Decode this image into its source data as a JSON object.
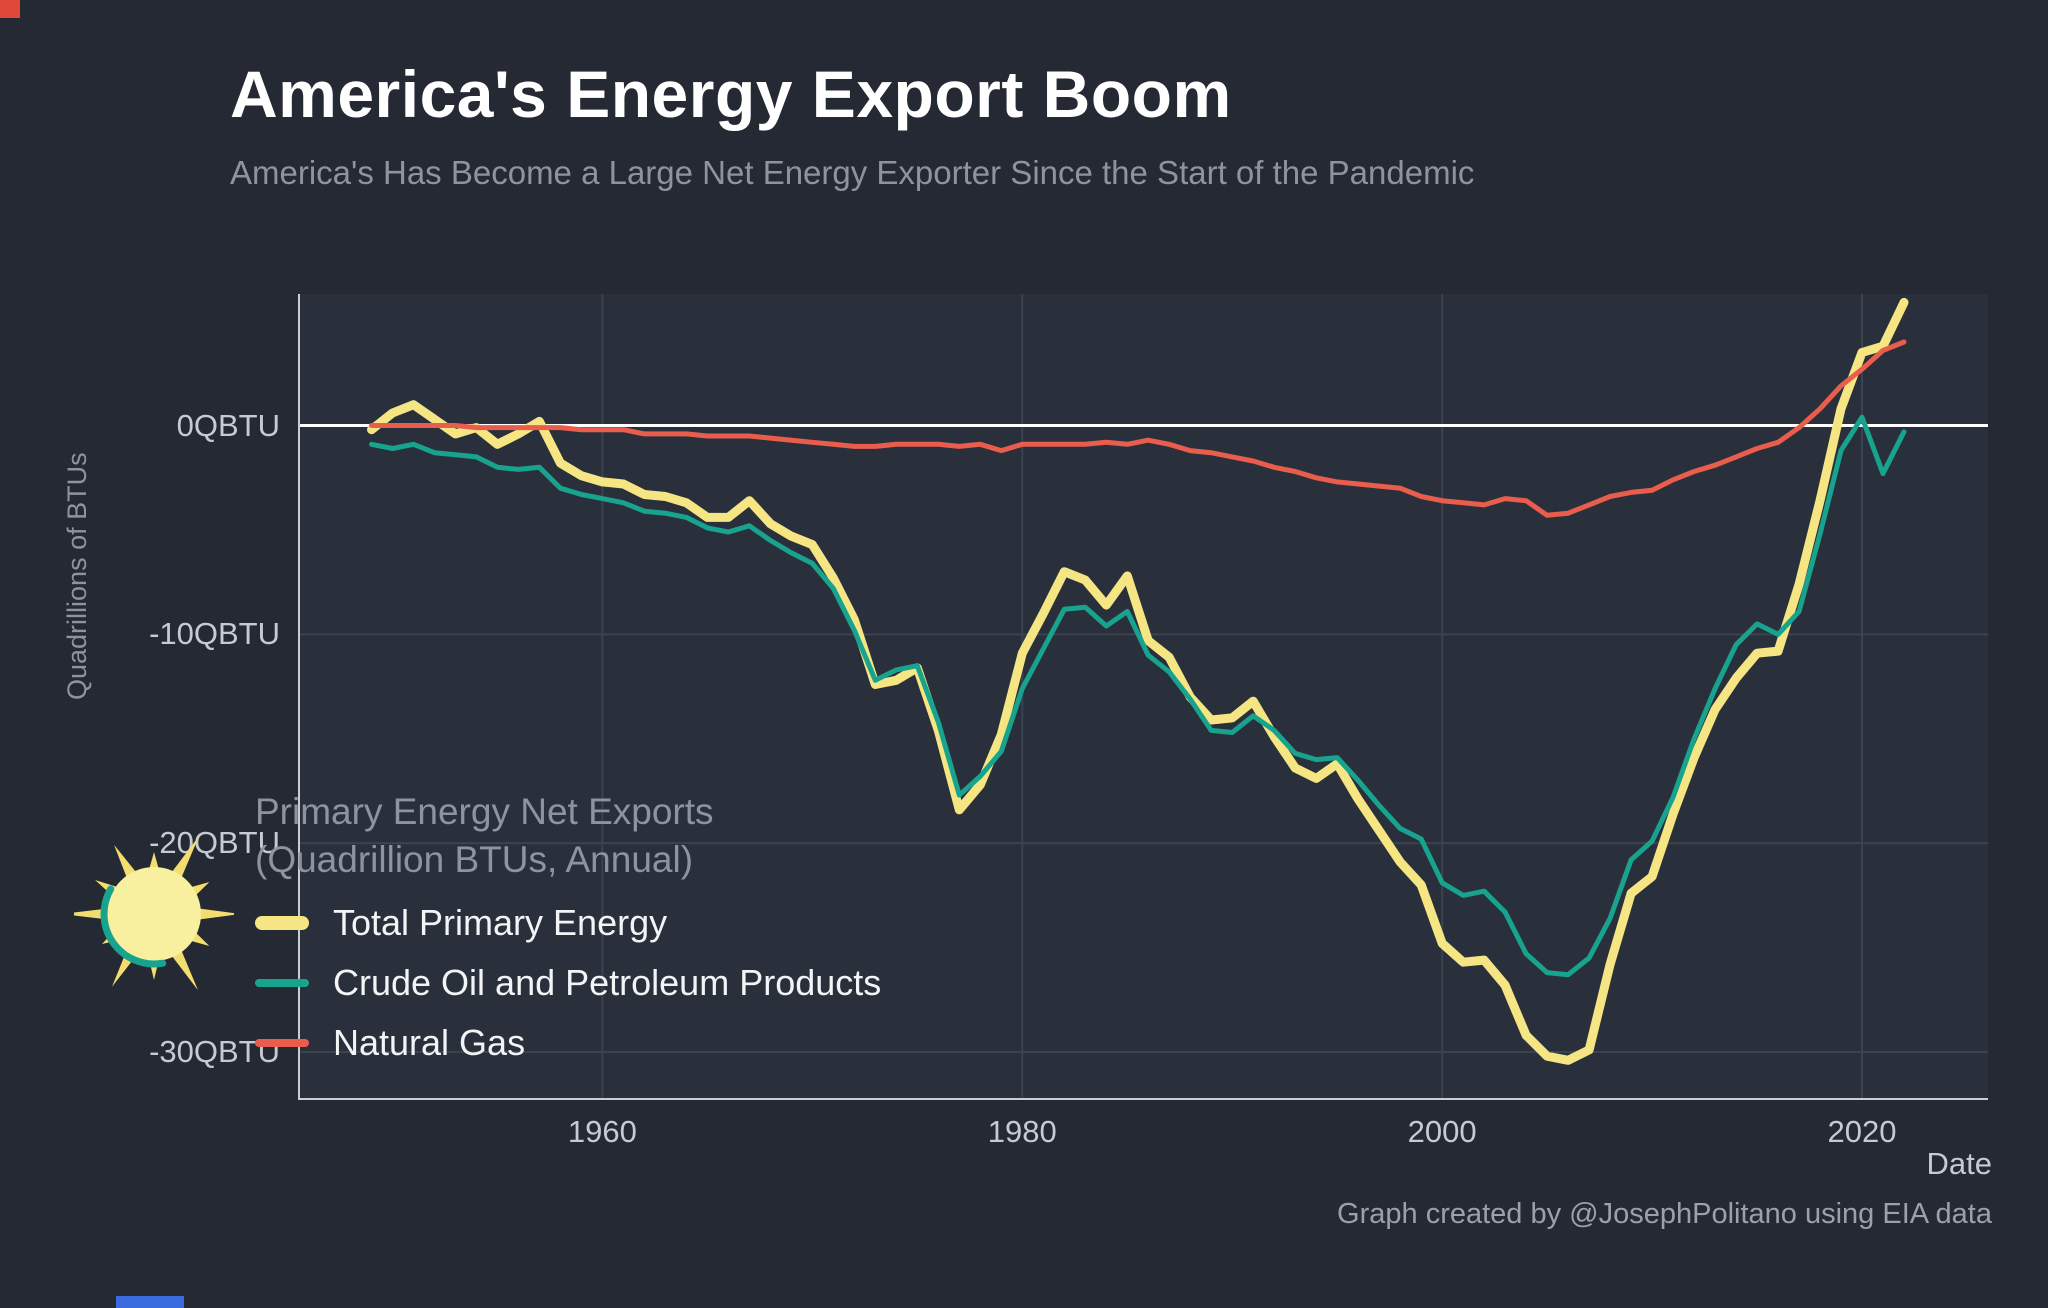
{
  "header": {
    "title": "America's Energy Export Boom",
    "subtitle": "America's Has Become a Large Net Energy Exporter Since the Start of the Pandemic"
  },
  "axes": {
    "y_label": "Quadrillions of BTUs",
    "x_label": "Date",
    "y_ticks": [
      "0QBTU",
      "-10QBTU",
      "-20QBTU",
      "-30QBTU"
    ],
    "x_ticks": [
      "1960",
      "1980",
      "2000",
      "2020"
    ]
  },
  "annotation": {
    "line1": "Primary Energy Net Exports",
    "line2": "(Quadrillion BTUs, Annual)"
  },
  "footer": {
    "credit": "Graph created by @JosephPolitano using EIA data"
  },
  "colors": {
    "background": "#242933",
    "plot_background": "#2a303b",
    "grid": "#3b4250",
    "zero_line": "#ffffff",
    "spine": "#c9ced6",
    "accent_yellow": "#f5e583",
    "accent_teal": "#17a38e",
    "accent_red": "#e95d4c"
  },
  "logo": {
    "disc": "#f8f09e",
    "rays": "#f2dd6e",
    "arc": "#17a38e"
  },
  "chart_data": {
    "type": "line",
    "title": "America's Energy Export Boom",
    "xlabel": "Date",
    "ylabel": "Quadrillions of BTUs",
    "xlim": [
      1945.5,
      2026
    ],
    "ylim": [
      -32.3,
      6.3
    ],
    "x_gridlines": [
      1960,
      1980,
      2000,
      2020
    ],
    "y_gridlines": [
      0,
      -10,
      -20,
      -30
    ],
    "legend_position": "bottom-left-inside",
    "x": [
      1949,
      1950,
      1951,
      1952,
      1953,
      1954,
      1955,
      1956,
      1957,
      1958,
      1959,
      1960,
      1961,
      1962,
      1963,
      1964,
      1965,
      1966,
      1967,
      1968,
      1969,
      1970,
      1971,
      1972,
      1973,
      1974,
      1975,
      1976,
      1977,
      1978,
      1979,
      1980,
      1981,
      1982,
      1983,
      1984,
      1985,
      1986,
      1987,
      1988,
      1989,
      1990,
      1991,
      1992,
      1993,
      1994,
      1995,
      1996,
      1997,
      1998,
      1999,
      2000,
      2001,
      2002,
      2003,
      2004,
      2005,
      2006,
      2007,
      2008,
      2009,
      2010,
      2011,
      2012,
      2013,
      2014,
      2015,
      2016,
      2017,
      2018,
      2019,
      2020,
      2021,
      2022
    ],
    "series": [
      {
        "name": "Total Primary Energy",
        "color": "#f5e583",
        "width": 9,
        "values": [
          -0.2,
          0.6,
          1.0,
          0.3,
          -0.4,
          -0.1,
          -0.9,
          -0.4,
          0.2,
          -1.8,
          -2.4,
          -2.7,
          -2.8,
          -3.3,
          -3.4,
          -3.7,
          -4.4,
          -4.4,
          -3.6,
          -4.7,
          -5.3,
          -5.7,
          -7.3,
          -9.3,
          -12.4,
          -12.2,
          -11.6,
          -14.6,
          -18.4,
          -17.2,
          -14.8,
          -10.9,
          -9.0,
          -7.0,
          -7.4,
          -8.6,
          -7.2,
          -10.3,
          -11.1,
          -13.0,
          -14.1,
          -14.0,
          -13.2,
          -14.9,
          -16.4,
          -16.9,
          -16.2,
          -17.9,
          -19.4,
          -20.9,
          -22.0,
          -24.8,
          -25.7,
          -25.6,
          -26.8,
          -29.2,
          -30.2,
          -30.4,
          -29.9,
          -25.8,
          -22.4,
          -21.6,
          -18.6,
          -15.9,
          -13.6,
          -12.1,
          -10.9,
          -10.8,
          -7.6,
          -3.6,
          0.8,
          3.5,
          3.8,
          5.9
        ]
      },
      {
        "name": "Crude Oil and Petroleum Products",
        "color": "#17a38e",
        "width": 5,
        "values": [
          -0.9,
          -1.1,
          -0.9,
          -1.3,
          -1.4,
          -1.5,
          -2.0,
          -2.1,
          -2.0,
          -3.0,
          -3.3,
          -3.5,
          -3.7,
          -4.1,
          -4.2,
          -4.4,
          -4.9,
          -5.1,
          -4.8,
          -5.5,
          -6.1,
          -6.6,
          -7.8,
          -9.8,
          -12.2,
          -11.7,
          -11.5,
          -14.2,
          -17.7,
          -16.8,
          -15.6,
          -12.6,
          -10.7,
          -8.8,
          -8.7,
          -9.6,
          -8.9,
          -11.0,
          -11.8,
          -13.1,
          -14.6,
          -14.7,
          -13.9,
          -14.6,
          -15.7,
          -16.0,
          -15.9,
          -17.0,
          -18.2,
          -19.3,
          -19.8,
          -21.9,
          -22.5,
          -22.3,
          -23.3,
          -25.3,
          -26.2,
          -26.3,
          -25.5,
          -23.6,
          -20.8,
          -19.9,
          -17.8,
          -15.0,
          -12.6,
          -10.5,
          -9.5,
          -10.0,
          -8.9,
          -5.2,
          -1.2,
          0.4,
          -2.3,
          -0.3
        ]
      },
      {
        "name": "Natural Gas",
        "color": "#e95d4c",
        "width": 5,
        "values": [
          0.0,
          0.0,
          0.0,
          0.0,
          0.0,
          -0.1,
          -0.1,
          -0.1,
          -0.1,
          -0.1,
          -0.2,
          -0.2,
          -0.2,
          -0.4,
          -0.4,
          -0.4,
          -0.5,
          -0.5,
          -0.5,
          -0.6,
          -0.7,
          -0.8,
          -0.9,
          -1.0,
          -1.0,
          -0.9,
          -0.9,
          -0.9,
          -1.0,
          -0.9,
          -1.2,
          -0.9,
          -0.9,
          -0.9,
          -0.9,
          -0.8,
          -0.9,
          -0.7,
          -0.9,
          -1.2,
          -1.3,
          -1.5,
          -1.7,
          -2.0,
          -2.2,
          -2.5,
          -2.7,
          -2.8,
          -2.9,
          -3.0,
          -3.4,
          -3.6,
          -3.7,
          -3.8,
          -3.5,
          -3.6,
          -4.3,
          -4.2,
          -3.8,
          -3.4,
          -3.2,
          -3.1,
          -2.6,
          -2.2,
          -1.9,
          -1.5,
          -1.1,
          -0.8,
          -0.1,
          0.8,
          1.9,
          2.7,
          3.6,
          4.0
        ]
      }
    ]
  }
}
